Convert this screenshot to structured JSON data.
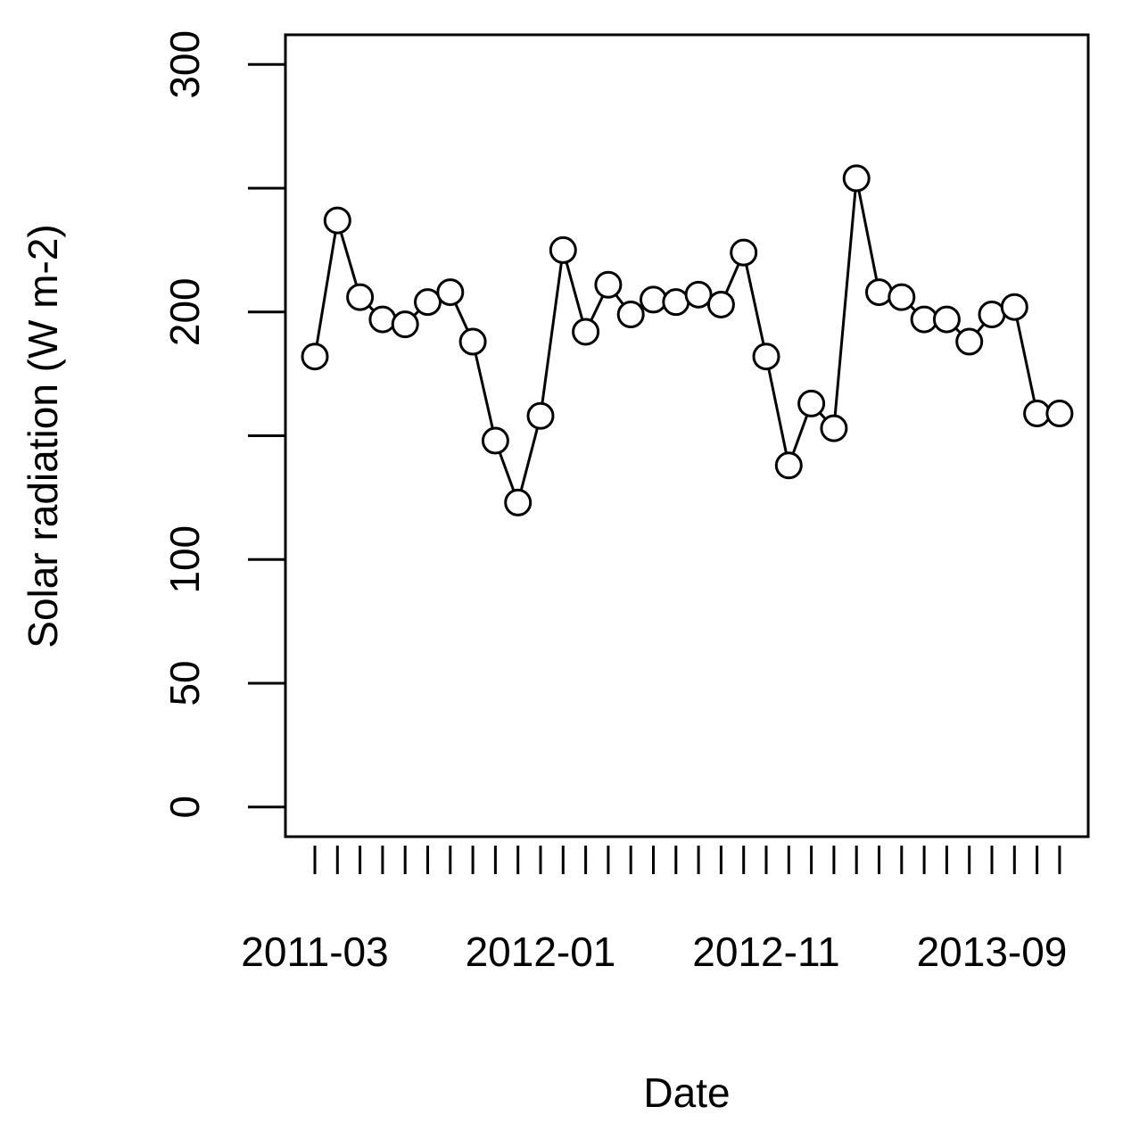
{
  "chart_data": {
    "type": "line",
    "xlabel": "Date",
    "ylabel": "Solar radiation (W m-2)",
    "ylim": [
      -12,
      312
    ],
    "y_ticks": [
      0,
      50,
      100,
      150,
      200,
      250,
      300
    ],
    "y_tick_labels": [
      "0",
      "50",
      "100",
      "",
      "200",
      "",
      "300"
    ],
    "x_tick_labels": [
      {
        "index": 0,
        "label": "2011-03"
      },
      {
        "index": 10,
        "label": "2012-01"
      },
      {
        "index": 20,
        "label": "2012-11"
      },
      {
        "index": 30,
        "label": "2013-09"
      }
    ],
    "x": [
      "2011-03",
      "2011-04",
      "2011-05",
      "2011-06",
      "2011-07",
      "2011-08",
      "2011-09",
      "2011-10",
      "2011-11",
      "2011-12",
      "2012-01",
      "2012-02",
      "2012-03",
      "2012-04",
      "2012-05",
      "2012-06",
      "2012-07",
      "2012-08",
      "2012-09",
      "2012-10",
      "2012-11",
      "2012-12",
      "2013-01",
      "2013-02",
      "2013-03",
      "2013-04",
      "2013-05",
      "2013-06",
      "2013-07",
      "2013-08",
      "2013-09",
      "2013-10",
      "2013-11",
      "2013-12"
    ],
    "series": [
      {
        "values": [
          182,
          237,
          206,
          197,
          195,
          204,
          208,
          188,
          148,
          123,
          158,
          225,
          192,
          211,
          199,
          205,
          204,
          207,
          203,
          224,
          182,
          138,
          163,
          153,
          254,
          208,
          206,
          197,
          197,
          188,
          199,
          202,
          159,
          159
        ]
      }
    ],
    "marker": "open-circle",
    "line_color": "#000000",
    "grid": false,
    "legend": false
  }
}
